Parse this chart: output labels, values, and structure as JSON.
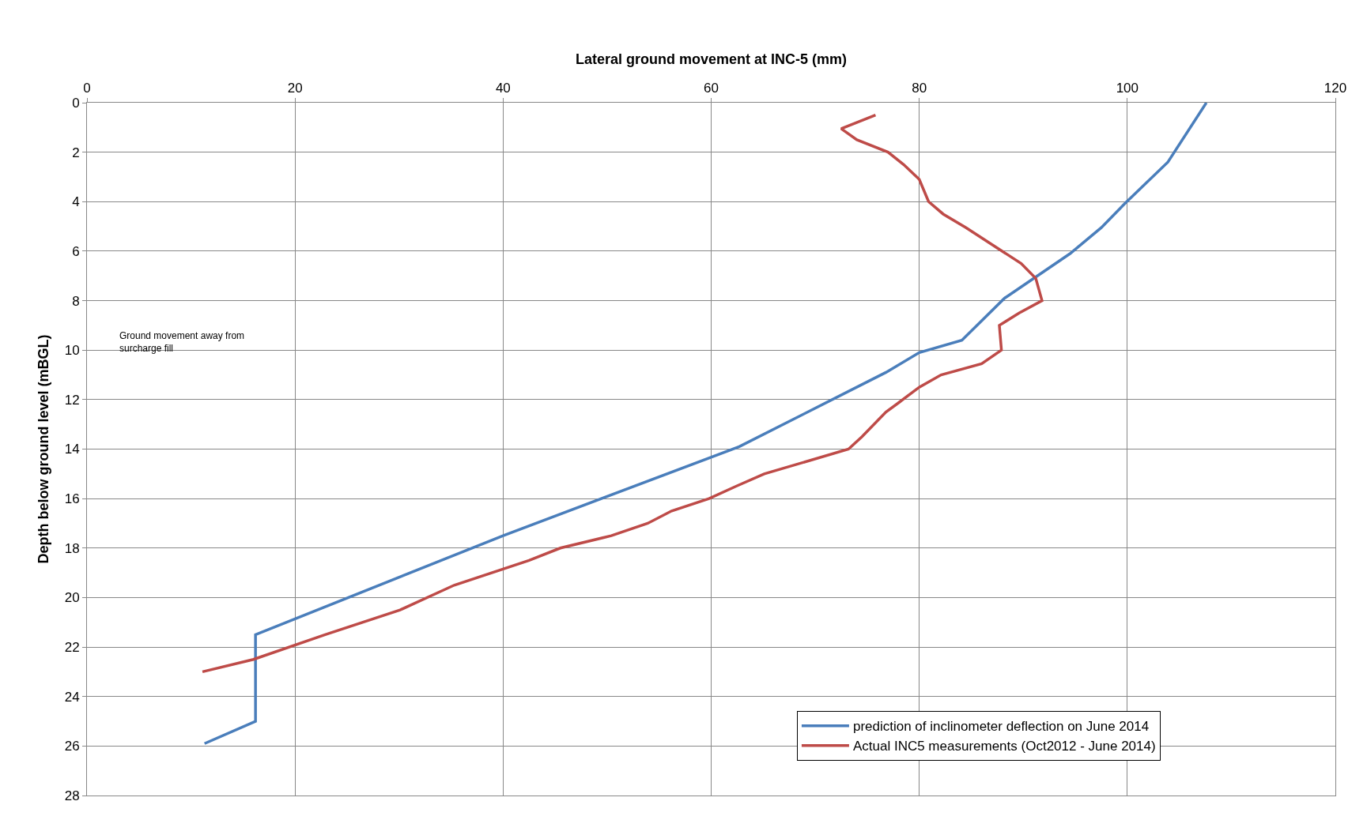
{
  "chart_data": {
    "type": "line",
    "xlabel": "Lateral ground movement at INC-5 (mm)",
    "ylabel": "Depth below ground level (mBGL)",
    "xlim": [
      0,
      120
    ],
    "xticks": [
      0,
      20,
      40,
      60,
      80,
      100,
      120
    ],
    "ylim": [
      28,
      0
    ],
    "yticks": [
      0,
      2,
      4,
      6,
      8,
      10,
      12,
      14,
      16,
      18,
      20,
      22,
      24,
      26,
      28
    ],
    "grid": true,
    "legend": "bottom right",
    "marker": "none",
    "line_style": "solid",
    "annotations": [
      "Ground movement away from surcharge fill"
    ],
    "series": [
      {
        "name": "prediction of inclinometer deflection on June 2014",
        "color": "#4a7ebb",
        "x": [
          107.6,
          103.9,
          99.7,
          97.5,
          94.5,
          88.2,
          84.1,
          80,
          76.8,
          62.7,
          40,
          16.2,
          16.2,
          11.3
        ],
        "values": [
          0,
          2.4,
          4.1,
          5.05,
          6.1,
          7.9,
          9.6,
          10.1,
          10.9,
          13.9,
          17.5,
          21.5,
          25.0,
          25.9
        ]
      },
      {
        "name": "Actual INC5 measurements (Oct2012 - June 2014)",
        "color": "#be4b48",
        "x": [
          75.8,
          72.5,
          74,
          77,
          78.5,
          80,
          80.9,
          82.3,
          84.5,
          89.8,
          91.2,
          91.8,
          89.6,
          87.7,
          87.9,
          86.0,
          82.1,
          80,
          78.1,
          76.8,
          74.5,
          73.2,
          65.1,
          62.4,
          59.8,
          56.2,
          53.9,
          50.4,
          45.5,
          42.5,
          35.3,
          30.1,
          22.9,
          16,
          11.1
        ],
        "values": [
          0.5,
          1.05,
          1.5,
          2.0,
          2.5,
          3.1,
          4.0,
          4.5,
          5.05,
          6.5,
          7.1,
          8.0,
          8.5,
          9.0,
          10.0,
          10.55,
          11.0,
          11.5,
          12.1,
          12.5,
          13.5,
          14.0,
          15.0,
          15.5,
          16.0,
          16.5,
          17.0,
          17.5,
          18.0,
          18.5,
          19.5,
          20.5,
          21.5,
          22.5,
          23.0
        ]
      }
    ]
  }
}
